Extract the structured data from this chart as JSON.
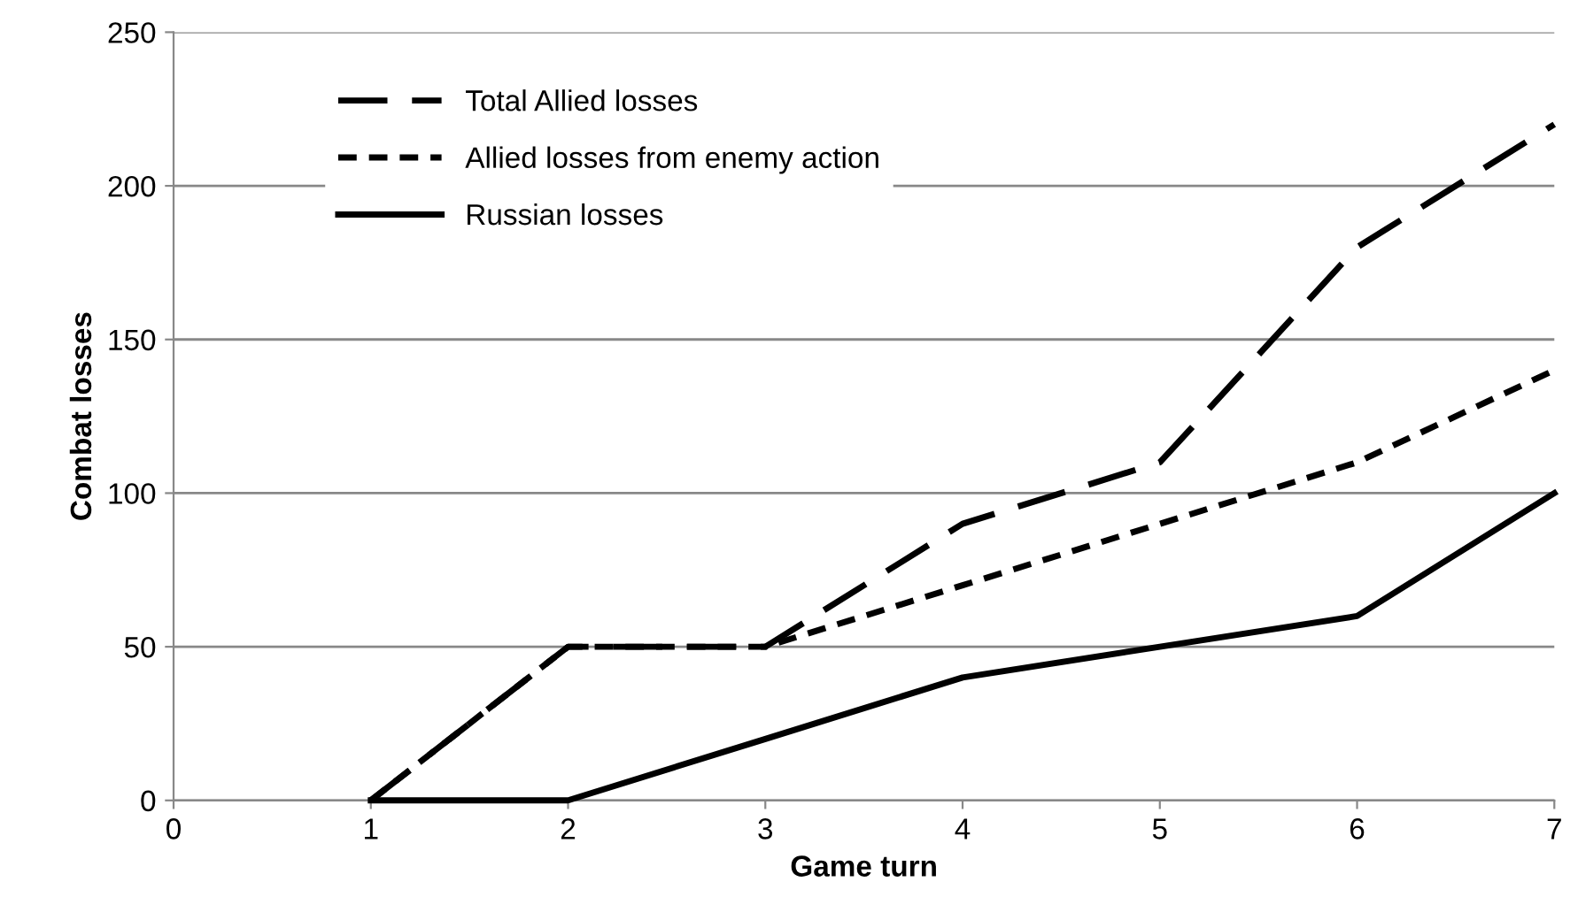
{
  "chart_data": {
    "type": "line",
    "xlabel": "Game turn",
    "ylabel": "Combat losses",
    "x": [
      1,
      2,
      3,
      4,
      5,
      6,
      7
    ],
    "series": [
      {
        "name": "Total Allied losses",
        "color": "#000000",
        "line_style": "dashed",
        "values": [
          0,
          50,
          50,
          90,
          110,
          180,
          220
        ]
      },
      {
        "name": "Allied losses from enemy action",
        "color": "#000000",
        "line_style": "dotted",
        "values": [
          0,
          50,
          50,
          70,
          90,
          110,
          140
        ]
      },
      {
        "name": "Russian losses",
        "color": "#000000",
        "line_style": "solid",
        "values": [
          0,
          0,
          20,
          40,
          50,
          60,
          100
        ]
      }
    ],
    "xlim": [
      0,
      7
    ],
    "xticks": [
      0,
      1,
      2,
      3,
      4,
      5,
      6,
      7
    ],
    "ylim": [
      0,
      250
    ],
    "yticks": [
      0,
      50,
      100,
      150,
      200,
      250
    ],
    "grid": "y",
    "legend": "top left",
    "marker": "none"
  }
}
